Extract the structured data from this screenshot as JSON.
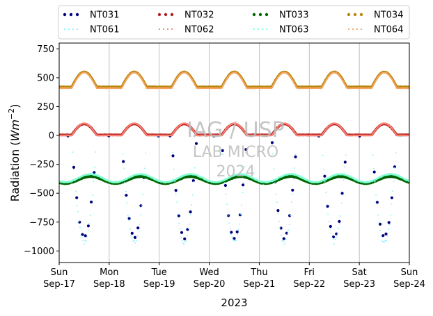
{
  "chart_data": {
    "type": "scatter",
    "title": "",
    "xlabel": "2023",
    "ylabel": "Radiation (Wm^-2)",
    "ylabel_main": "Radiation (",
    "ylabel_unit_base": "Wm",
    "ylabel_unit_exp": "−2",
    "ylabel_close": ")",
    "xlim": [
      "2023-09-17",
      "2023-09-24"
    ],
    "ylim": [
      -1100,
      800
    ],
    "yticks": [
      750,
      500,
      250,
      0,
      -250,
      -500,
      -750,
      -1000
    ],
    "ytick_labels": [
      "750",
      "500",
      "250",
      "0",
      "−250",
      "−500",
      "−750",
      "−1000"
    ],
    "xticks": [
      {
        "date": "2023-09-17",
        "day": "Sun",
        "label": "Sep-17"
      },
      {
        "date": "2023-09-18",
        "day": "Mon",
        "label": "Sep-18"
      },
      {
        "date": "2023-09-19",
        "day": "Tue",
        "label": "Sep-19"
      },
      {
        "date": "2023-09-20",
        "day": "Wed",
        "label": "Sep-20"
      },
      {
        "date": "2023-09-21",
        "day": "Thu",
        "label": "Sep-21"
      },
      {
        "date": "2023-09-22",
        "day": "Fri",
        "label": "Sep-22"
      },
      {
        "date": "2023-09-23",
        "day": "Sat",
        "label": "Sep-23"
      },
      {
        "date": "2023-09-24",
        "day": "Sun",
        "label": "Sep-24"
      }
    ],
    "grid": "vertical lines at day boundaries",
    "legend_position": "top, above plot, 4 columns",
    "watermark": [
      "IAG / USP",
      "LAB MICRO",
      "2024"
    ],
    "series": [
      {
        "name": "NT031",
        "color": "#00007f",
        "style": "dots",
        "kind": "dip",
        "base": -5,
        "amplitude": -880,
        "noise": 30,
        "sampling_hours": 1.4
      },
      {
        "name": "NT032",
        "color": "#b22222",
        "style": "dots",
        "kind": "bump",
        "base": 5,
        "amplitude": 95,
        "noise": 4,
        "sampling_hours": 0.08
      },
      {
        "name": "NT033",
        "color": "#006400",
        "style": "dots",
        "kind": "band",
        "base": -385,
        "amplitude": 30,
        "noise": 8,
        "sampling_hours": 0.08
      },
      {
        "name": "NT034",
        "color": "#b8860b",
        "style": "dots",
        "kind": "bump",
        "base": 420,
        "amplitude": 130,
        "noise": 5,
        "sampling_hours": 0.08
      },
      {
        "name": "NT061",
        "color": "#87eefa",
        "style": "dotted",
        "kind": "dip",
        "base": -5,
        "amplitude": -920,
        "noise": 40,
        "sampling_hours": 0.5
      },
      {
        "name": "NT062",
        "color": "#fa8072",
        "style": "dotted",
        "kind": "bump",
        "base": 0,
        "amplitude": 105,
        "noise": 5,
        "sampling_hours": 0.08
      },
      {
        "name": "NT063",
        "color": "#7fffd4",
        "style": "dotted",
        "kind": "band",
        "base": -370,
        "amplitude": 35,
        "noise": 10,
        "sampling_hours": 0.08
      },
      {
        "name": "NT064",
        "color": "#f4a460",
        "style": "dotted",
        "kind": "bump",
        "base": 410,
        "amplitude": 135,
        "noise": 5,
        "sampling_hours": 0.08
      }
    ]
  }
}
